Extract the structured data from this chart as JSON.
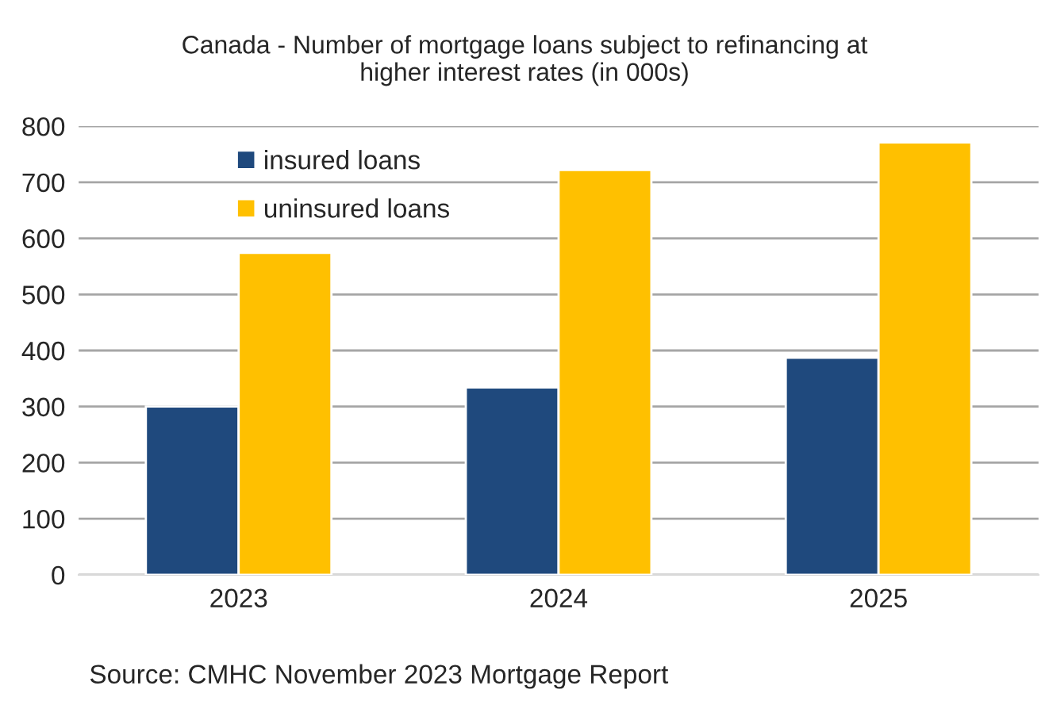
{
  "chart_data": {
    "type": "bar",
    "title": "Canada - Number of mortgage loans subject to refinancing at\nhigher interest rates (in 000s)",
    "categories": [
      "2023",
      "2024",
      "2025"
    ],
    "series": [
      {
        "name": "insured loans",
        "color": "#1f497d",
        "values": [
          300,
          334,
          387
        ]
      },
      {
        "name": "uninsured loans",
        "color": "#ffc000",
        "values": [
          574,
          722,
          771
        ]
      }
    ],
    "ylim": [
      0,
      800
    ],
    "yticks": [
      0,
      100,
      200,
      300,
      400,
      500,
      600,
      700,
      800
    ],
    "grid": "y",
    "legend": "top left",
    "annotations": [
      "Source: CMHC November 2023 Mortgage Report"
    ]
  }
}
